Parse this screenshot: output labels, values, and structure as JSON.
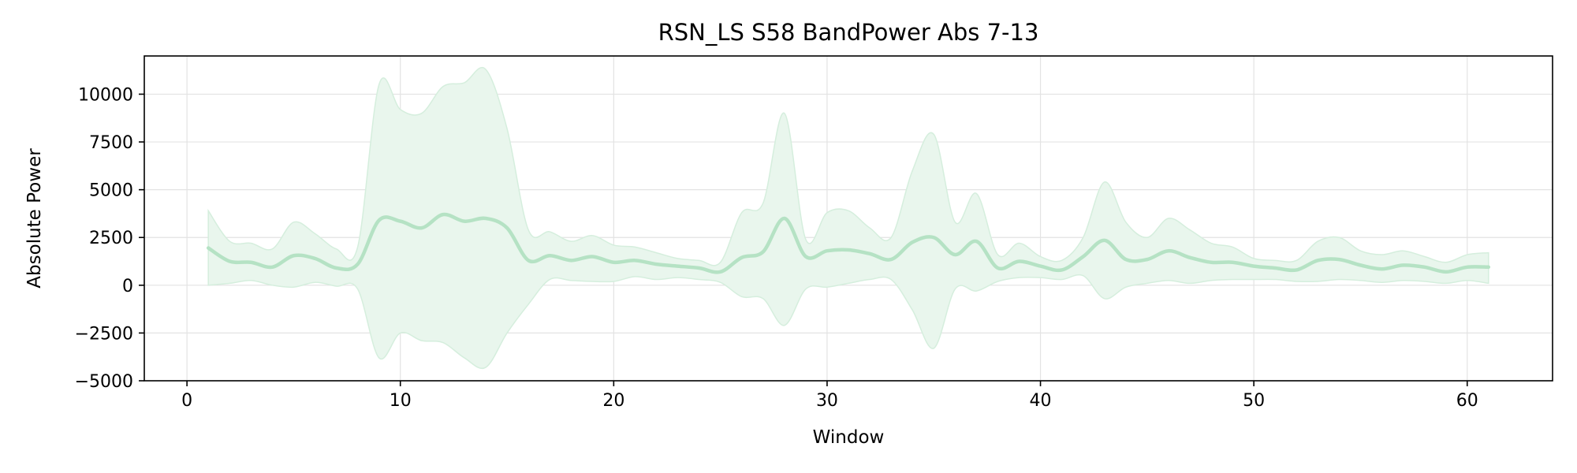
{
  "chart_data": {
    "type": "line",
    "title": "RSN_LS S58 BandPower Abs 7-13",
    "xlabel": "Window",
    "ylabel": "Absolute Power",
    "xlim": [
      -2,
      64
    ],
    "ylim": [
      -5000,
      12000
    ],
    "x_ticks": [
      0,
      10,
      20,
      30,
      40,
      50,
      60
    ],
    "x_tick_labels": [
      "0",
      "10",
      "20",
      "30",
      "40",
      "50",
      "60"
    ],
    "y_ticks": [
      -5000,
      -2500,
      0,
      2500,
      5000,
      7500,
      10000
    ],
    "y_tick_labels": [
      "−5000",
      "−2500",
      "0",
      "2500",
      "5000",
      "7500",
      "10000"
    ],
    "grid": true,
    "line_color": "#b5e2c4",
    "band_color": "#e9f6ed",
    "band_edge_color": "#d5eedd",
    "series": [
      {
        "x": [
          1,
          2,
          3,
          4,
          5,
          6,
          7,
          8,
          9,
          10,
          11,
          12,
          13,
          14,
          15,
          16,
          17,
          18,
          19,
          20,
          21,
          22,
          23,
          24,
          25,
          26,
          27,
          28,
          29,
          30,
          31,
          32,
          33,
          34,
          35,
          36,
          37,
          38,
          39,
          40,
          41,
          42,
          43,
          44,
          45,
          46,
          47,
          48,
          49,
          50,
          51,
          52,
          53,
          54,
          55,
          56,
          57,
          58,
          59,
          60,
          61
        ],
        "mean": [
          1950,
          1250,
          1200,
          950,
          1550,
          1400,
          900,
          1100,
          3400,
          3350,
          3000,
          3700,
          3350,
          3500,
          3000,
          1300,
          1550,
          1300,
          1500,
          1200,
          1300,
          1100,
          1000,
          900,
          700,
          1450,
          1750,
          3500,
          1500,
          1800,
          1850,
          1650,
          1350,
          2250,
          2500,
          1600,
          2300,
          900,
          1250,
          1000,
          800,
          1500,
          2350,
          1350,
          1350,
          1800,
          1450,
          1200,
          1200,
          1000,
          900,
          800,
          1300,
          1350,
          1050,
          850,
          1050,
          950,
          700,
          950,
          950
        ],
        "upper": [
          3900,
          2300,
          2200,
          1900,
          3300,
          2700,
          1900,
          2000,
          10500,
          9200,
          9000,
          10400,
          10600,
          11300,
          8200,
          2900,
          2800,
          2300,
          2600,
          2100,
          2000,
          1700,
          1400,
          1300,
          1200,
          3800,
          4300,
          9000,
          2400,
          3800,
          3900,
          3000,
          2500,
          6000,
          7900,
          3300,
          4800,
          1600,
          2200,
          1500,
          1300,
          2500,
          5400,
          3300,
          2500,
          3500,
          2900,
          2200,
          2000,
          1400,
          1300,
          1300,
          2300,
          2500,
          1800,
          1600,
          1800,
          1500,
          1200,
          1600,
          1700
        ],
        "lower": [
          0,
          100,
          250,
          0,
          -100,
          150,
          -50,
          -200,
          -3800,
          -2500,
          -2900,
          -3000,
          -3800,
          -4300,
          -2500,
          -1000,
          300,
          250,
          200,
          200,
          450,
          300,
          400,
          300,
          150,
          -600,
          -700,
          -2100,
          -200,
          -100,
          100,
          300,
          300,
          -1300,
          -3300,
          -200,
          -300,
          200,
          400,
          400,
          300,
          500,
          -700,
          -100,
          100,
          250,
          100,
          250,
          300,
          300,
          300,
          200,
          200,
          300,
          250,
          150,
          250,
          200,
          100,
          250,
          100
        ]
      }
    ]
  }
}
